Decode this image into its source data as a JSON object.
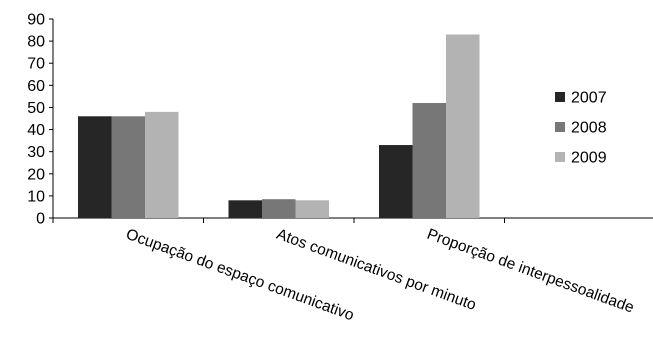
{
  "chart_data": {
    "type": "bar",
    "title": "",
    "xlabel": "",
    "ylabel": "",
    "ylim": [
      0,
      90
    ],
    "yticks": [
      0,
      10,
      20,
      30,
      40,
      50,
      60,
      70,
      80,
      90
    ],
    "grid": false,
    "legend_position": "right",
    "categories": [
      "Ocupação do espaço comunicativo",
      "Atos comunicativos por minuto",
      "Proporção de interpessoalidade"
    ],
    "series": [
      {
        "name": "2007",
        "color": "#262626",
        "values": [
          46,
          8,
          33
        ]
      },
      {
        "name": "2008",
        "color": "#777777",
        "values": [
          46,
          8.5,
          52
        ]
      },
      {
        "name": "2009",
        "color": "#b3b3b3",
        "values": [
          48,
          8,
          83
        ]
      }
    ]
  }
}
